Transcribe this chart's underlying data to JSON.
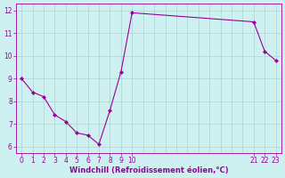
{
  "x": [
    0,
    1,
    2,
    3,
    4,
    5,
    6,
    7,
    8,
    9,
    10,
    21,
    22,
    23
  ],
  "y": [
    9.0,
    8.4,
    8.2,
    7.4,
    7.1,
    6.6,
    6.5,
    6.1,
    7.6,
    9.3,
    11.9,
    11.5,
    10.2,
    9.8
  ],
  "line_color": "#990099",
  "marker_color": "#990099",
  "bg_color": "#cff0f0",
  "grid_color": "#aad4d4",
  "xlabel": "Windchill (Refroidissement éolien,°C)",
  "xlabel_color": "#990099",
  "tick_color": "#990099",
  "xlim": [
    -0.5,
    23.5
  ],
  "ylim": [
    5.7,
    12.3
  ],
  "yticks": [
    6,
    7,
    8,
    9,
    10,
    11,
    12
  ],
  "xtick_positions": [
    0,
    1,
    2,
    3,
    4,
    5,
    6,
    7,
    8,
    9,
    10,
    21,
    22,
    23
  ],
  "xtick_labels": [
    "0",
    "1",
    "2",
    "3",
    "4",
    "5",
    "6",
    "7",
    "8",
    "9",
    "10",
    "21",
    "22",
    "23"
  ],
  "grid_xticks": [
    0,
    1,
    2,
    3,
    4,
    5,
    6,
    7,
    8,
    9,
    10,
    11,
    12,
    13,
    14,
    15,
    16,
    17,
    18,
    19,
    20,
    21,
    22,
    23
  ]
}
